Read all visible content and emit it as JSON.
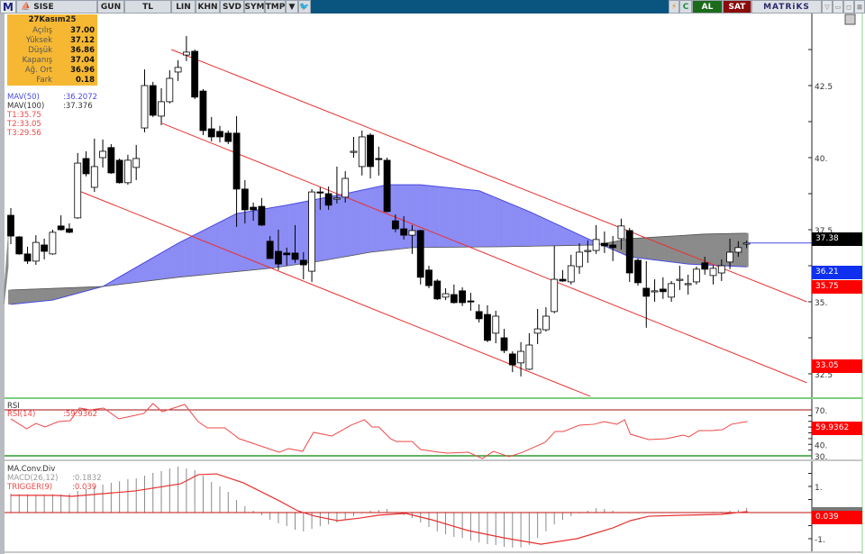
{
  "toolbar": {
    "logo": "M",
    "symbol": "SISE",
    "buttons": [
      "GUN",
      "TL",
      "LIN",
      "KHN",
      "SVD",
      "SYM",
      "TMP"
    ],
    "right": {
      "flash": "⚡",
      "refresh": "C",
      "buy": "AL",
      "sell": "SAT",
      "brand": "MATRiKS"
    }
  },
  "info_box": {
    "date": "27Kasım25",
    "rows": [
      {
        "label": "Açılış",
        "value": "37.00"
      },
      {
        "label": "Yüksek",
        "value": "37.12"
      },
      {
        "label": "Düşük",
        "value": "36.86"
      },
      {
        "label": "Kapanış",
        "value": "37.04"
      },
      {
        "label": "Ağ. Ort",
        "value": "36.96"
      },
      {
        "label": "Fark",
        "value": "0.18"
      }
    ]
  },
  "legend": {
    "mav50": {
      "name": "MAV(50)",
      "value": ":36.2072"
    },
    "mav100": {
      "name": "MAV(100)",
      "value": ":37.376"
    },
    "t1": "T1:35.75",
    "t2": "T2:33.05",
    "t3": "T3:29.56"
  },
  "rsi_legend": {
    "title": "RSI",
    "name": "RSI(14)",
    "value": ":59.9362"
  },
  "macd_legend": {
    "title": "MA.Conv.Div",
    "macd": "MACD(26,12)",
    "macd_value": ":0.1832",
    "trigger": "TRIGGER(9)",
    "trigger_value": ":0.039"
  },
  "price_labels": {
    "last": "37.38",
    "mav50": "36.21",
    "t1": "35.75",
    "t2": "33.05",
    "rsi": "59.9362",
    "trigger": "0.039"
  },
  "colors": {
    "up": "#ffffff",
    "down": "#000000",
    "mav50": "#4a4ae0",
    "mav50_fill": "#8c8cf5",
    "mav100_fill": "#8a8a8a",
    "trend": "#e83030",
    "rsi": "#f04848",
    "trigger": "#e83030",
    "macd": "#8a8a8a",
    "rsi_upper": "#a01010",
    "rsi_lower": "#2e9a2e"
  },
  "chart_data": {
    "type": "candlestick",
    "price_axis": {
      "ticks": [
        42.5,
        40,
        37.5,
        35,
        32.5
      ],
      "tick_labels": [
        "42.5",
        "40.",
        "37.5",
        "35.",
        "32.5"
      ]
    },
    "candles": [
      [
        38.0,
        38.25,
        37.0,
        37.28
      ],
      [
        37.25,
        37.28,
        36.63,
        36.66
      ],
      [
        36.66,
        36.91,
        36.31,
        36.41
      ],
      [
        36.41,
        37.31,
        36.28,
        37.06
      ],
      [
        36.97,
        37.19,
        36.47,
        36.75
      ],
      [
        36.66,
        37.5,
        36.63,
        37.41
      ],
      [
        37.63,
        38.0,
        37.47,
        37.5
      ],
      [
        37.53,
        37.72,
        37.38,
        37.41
      ],
      [
        37.91,
        40.16,
        37.88,
        39.81
      ],
      [
        39.97,
        40.22,
        39.35,
        39.44
      ],
      [
        38.97,
        40.66,
        38.81,
        39.69
      ],
      [
        40.0,
        40.63,
        39.66,
        40.22
      ],
      [
        40.35,
        40.47,
        39.44,
        39.47
      ],
      [
        39.91,
        39.97,
        39.1,
        39.13
      ],
      [
        39.13,
        40.1,
        39.06,
        39.91
      ],
      [
        39.66,
        40.44,
        39.22,
        39.97
      ],
      [
        41.03,
        43.06,
        40.88,
        42.5
      ],
      [
        42.5,
        42.63,
        41.41,
        41.47
      ],
      [
        41.44,
        42.41,
        41.13,
        41.94
      ],
      [
        41.94,
        43.03,
        41.88,
        42.75
      ],
      [
        42.97,
        43.38,
        42.66,
        43.13
      ],
      [
        43.56,
        44.22,
        43.35,
        43.66
      ],
      [
        43.69,
        43.75,
        42.03,
        42.1
      ],
      [
        42.31,
        42.38,
        40.78,
        40.94
      ],
      [
        41.0,
        41.41,
        40.56,
        40.72
      ],
      [
        40.91,
        41.1,
        40.53,
        40.72
      ],
      [
        40.85,
        40.94,
        40.47,
        40.56
      ],
      [
        40.85,
        41.44,
        37.6,
        38.91
      ],
      [
        38.91,
        39.22,
        37.72,
        38.19
      ],
      [
        38.28,
        38.44,
        37.81,
        38.19
      ],
      [
        38.31,
        38.6,
        37.63,
        37.66
      ],
      [
        37.1,
        37.28,
        36.53,
        36.5
      ],
      [
        36.75,
        37.5,
        36.1,
        36.31
      ],
      [
        36.69,
        36.88,
        36.25,
        36.63
      ],
      [
        36.69,
        37.66,
        36.35,
        36.47
      ],
      [
        36.44,
        36.72,
        35.78,
        36.28
      ],
      [
        36.06,
        38.91,
        35.69,
        38.81
      ],
      [
        38.81,
        38.97,
        38.19,
        38.78
      ],
      [
        38.75,
        39.0,
        38.19,
        38.35
      ],
      [
        38.56,
        39.69,
        38.41,
        38.6
      ],
      [
        38.63,
        39.53,
        38.44,
        39.28
      ],
      [
        40.19,
        40.72,
        40.0,
        40.22
      ],
      [
        39.69,
        40.94,
        39.38,
        40.72
      ],
      [
        40.78,
        40.85,
        39.28,
        39.69
      ],
      [
        39.97,
        40.38,
        39.38,
        39.94
      ],
      [
        39.91,
        40.0,
        38.1,
        38.13
      ],
      [
        37.81,
        38.03,
        37.41,
        37.53
      ],
      [
        37.53,
        37.97,
        37.16,
        37.31
      ],
      [
        37.31,
        37.66,
        36.66,
        37.47
      ],
      [
        37.47,
        37.5,
        35.6,
        35.85
      ],
      [
        36.1,
        36.25,
        35.47,
        35.56
      ],
      [
        35.72,
        35.78,
        35.06,
        35.1
      ],
      [
        35.16,
        35.47,
        35.06,
        35.28
      ],
      [
        35.25,
        35.6,
        34.94,
        34.97
      ],
      [
        35.38,
        35.5,
        34.85,
        34.97
      ],
      [
        35.03,
        35.31,
        34.69,
        35.0
      ],
      [
        34.66,
        34.91,
        34.28,
        34.41
      ],
      [
        34.56,
        34.88,
        33.6,
        33.66
      ],
      [
        33.91,
        34.69,
        33.56,
        34.5
      ],
      [
        33.75,
        34.06,
        33.22,
        33.31
      ],
      [
        33.19,
        33.28,
        32.56,
        32.81
      ],
      [
        32.88,
        33.6,
        32.41,
        33.28
      ],
      [
        32.66,
        33.91,
        32.63,
        33.5
      ],
      [
        33.91,
        34.75,
        33.53,
        34.06
      ],
      [
        34.03,
        34.81,
        33.97,
        34.5
      ],
      [
        34.66,
        36.94,
        34.6,
        35.78
      ],
      [
        35.78,
        36.1,
        35.69,
        35.72
      ],
      [
        35.69,
        36.63,
        35.6,
        36.25
      ],
      [
        36.22,
        37.03,
        35.97,
        36.72
      ],
      [
        36.75,
        37.13,
        36.35,
        36.78
      ],
      [
        36.78,
        37.66,
        36.66,
        37.16
      ],
      [
        37.03,
        37.44,
        36.69,
        36.94
      ],
      [
        36.97,
        37.28,
        36.41,
        36.88
      ],
      [
        37.19,
        37.88,
        36.81,
        37.63
      ],
      [
        37.47,
        37.56,
        35.69,
        36.0
      ],
      [
        36.44,
        36.5,
        35.56,
        35.66
      ],
      [
        35.47,
        36.41,
        34.1,
        35.19
      ],
      [
        35.35,
        35.78,
        35.0,
        35.38
      ],
      [
        35.44,
        35.85,
        35.1,
        35.35
      ],
      [
        35.16,
        35.72,
        35.0,
        35.63
      ],
      [
        35.75,
        36.25,
        35.41,
        35.78
      ],
      [
        35.6,
        35.94,
        35.25,
        35.63
      ],
      [
        35.69,
        36.22,
        35.6,
        36.13
      ],
      [
        36.35,
        36.56,
        35.94,
        36.13
      ],
      [
        35.91,
        36.25,
        35.6,
        36.16
      ],
      [
        36.0,
        36.47,
        35.72,
        36.25
      ],
      [
        36.38,
        37.19,
        36.13,
        36.72
      ],
      [
        36.72,
        37.1,
        36.56,
        36.88
      ],
      [
        37.0,
        37.12,
        36.86,
        37.04
      ]
    ],
    "mav50": [
      [
        0,
        34.91
      ],
      [
        5,
        35.06
      ],
      [
        11,
        35.53
      ],
      [
        20,
        37.03
      ],
      [
        27,
        38.06
      ],
      [
        33,
        38.35
      ],
      [
        40,
        38.75
      ],
      [
        45,
        39.06
      ],
      [
        49,
        39.06
      ],
      [
        56,
        38.85
      ],
      [
        62,
        38.13
      ],
      [
        69,
        37.19
      ],
      [
        74,
        36.56
      ],
      [
        81,
        36.31
      ],
      [
        88,
        36.21
      ]
    ],
    "mav100": [
      [
        0,
        35.41
      ],
      [
        11,
        35.53
      ],
      [
        20,
        35.85
      ],
      [
        31,
        36.16
      ],
      [
        37,
        36.41
      ],
      [
        43,
        36.72
      ],
      [
        48,
        36.88
      ],
      [
        59,
        36.91
      ],
      [
        70,
        36.97
      ],
      [
        74,
        37.19
      ],
      [
        83,
        37.35
      ],
      [
        88,
        37.38
      ]
    ],
    "trend_lines": [
      {
        "from": [
          19.2,
          43.75
        ],
        "to": [
          95.2,
          35.0
        ]
      },
      {
        "from": [
          18.1,
          41.19
        ],
        "to": [
          95.2,
          32.19
        ]
      },
      {
        "from": [
          8.2,
          38.84
        ],
        "to": [
          69.3,
          31.72
        ]
      }
    ],
    "last_price": 37.04,
    "rsi": {
      "levels": [
        70,
        30
      ],
      "tick_labels": [
        "70.",
        "40.",
        "30."
      ],
      "points": [
        [
          0,
          62.2
        ],
        [
          1.9,
          53.5
        ],
        [
          3,
          58.2
        ],
        [
          4.1,
          55.1
        ],
        [
          5.7,
          59.8
        ],
        [
          7.1,
          60.6
        ],
        [
          8.2,
          71.6
        ],
        [
          9.5,
          70
        ],
        [
          11.1,
          71.6
        ],
        [
          12.9,
          62.2
        ],
        [
          14.9,
          65.3
        ],
        [
          15.9,
          66.9
        ],
        [
          17,
          75.5
        ],
        [
          18.1,
          68.4
        ],
        [
          20.8,
          74.7
        ],
        [
          22.4,
          59.8
        ],
        [
          23.5,
          54.3
        ],
        [
          25.6,
          54.3
        ],
        [
          27.3,
          44.9
        ],
        [
          28.9,
          41.0
        ],
        [
          32.1,
          33.1
        ],
        [
          33.2,
          36.3
        ],
        [
          34.9,
          33.9
        ],
        [
          36.2,
          50.4
        ],
        [
          38.4,
          47.3
        ],
        [
          40.7,
          56.7
        ],
        [
          42.3,
          61.4
        ],
        [
          43.2,
          55.1
        ],
        [
          44,
          55.1
        ],
        [
          45.4,
          44.9
        ],
        [
          46.1,
          42.5
        ],
        [
          48,
          42.5
        ],
        [
          49,
          35.5
        ],
        [
          51.2,
          33.1
        ],
        [
          52.2,
          32.4
        ],
        [
          54.7,
          33.1
        ],
        [
          56.4,
          27.6
        ],
        [
          57.7,
          33.9
        ],
        [
          59.6,
          29.2
        ],
        [
          61.2,
          33.1
        ],
        [
          63.9,
          41.8
        ],
        [
          65.1,
          51.2
        ],
        [
          66.1,
          51.2
        ],
        [
          68,
          56.7
        ],
        [
          69.8,
          57.5
        ],
        [
          70.9,
          59.8
        ],
        [
          72.5,
          57.5
        ],
        [
          73.4,
          61.4
        ],
        [
          74.1,
          48.8
        ],
        [
          76.3,
          44.1
        ],
        [
          78.4,
          44.9
        ],
        [
          80.4,
          48.0
        ],
        [
          81.1,
          46.5
        ],
        [
          82.3,
          52.0
        ],
        [
          83.8,
          52.0
        ],
        [
          85.1,
          52.7
        ],
        [
          86.2,
          57.5
        ],
        [
          88.1,
          59.94
        ]
      ]
    },
    "macd": {
      "tick_labels": [
        "1.",
        "-1."
      ],
      "histogram": [
        0.72,
        0.7,
        0.7,
        0.68,
        0.68,
        0.7,
        0.7,
        0.72,
        0.83,
        0.9,
        1.0,
        1.07,
        1.14,
        1.2,
        1.28,
        1.31,
        1.41,
        1.52,
        1.59,
        1.69,
        1.76,
        1.69,
        1.62,
        1.41,
        1.17,
        1.0,
        0.79,
        0.48,
        0.24,
        0.07,
        -0.1,
        -0.28,
        -0.41,
        -0.52,
        -0.66,
        -0.72,
        -0.62,
        -0.52,
        -0.45,
        -0.38,
        -0.28,
        -0.14,
        -0.03,
        0.07,
        0.1,
        0.14,
        0.03,
        -0.1,
        -0.21,
        -0.38,
        -0.55,
        -0.72,
        -0.83,
        -0.93,
        -0.97,
        -1.07,
        -1.14,
        -1.21,
        -1.24,
        -1.31,
        -1.34,
        -1.34,
        -1.24,
        -0.97,
        -0.72,
        -0.45,
        -0.28,
        -0.14,
        -0.03,
        0.07,
        0.17,
        0.14,
        0.07,
        0,
        -0.02,
        -0.02,
        -0.02,
        -0.02,
        -0.02,
        -0.02,
        -0.02,
        -0.02,
        0.02,
        0.02,
        0.03,
        0.03,
        0.07,
        0.1,
        0.18
      ],
      "trigger": [
        [
          0,
          0.66
        ],
        [
          5.2,
          0.66
        ],
        [
          7.3,
          0.62
        ],
        [
          14.9,
          0.83
        ],
        [
          20.3,
          1.1
        ],
        [
          22.4,
          1.45
        ],
        [
          24.6,
          1.48
        ],
        [
          27.8,
          1.14
        ],
        [
          32.1,
          0.45
        ],
        [
          34.3,
          0.07
        ],
        [
          36.4,
          -0.14
        ],
        [
          39.1,
          -0.31
        ],
        [
          41.8,
          -0.21
        ],
        [
          44,
          -0.1
        ],
        [
          47.2,
          -0.03
        ],
        [
          50.4,
          -0.28
        ],
        [
          54.7,
          -0.69
        ],
        [
          59,
          -0.97
        ],
        [
          63.4,
          -1.21
        ],
        [
          67.7,
          -1.0
        ],
        [
          72,
          -0.59
        ],
        [
          74.1,
          -0.31
        ],
        [
          76.3,
          -0.14
        ],
        [
          80.6,
          -0.1
        ],
        [
          84.9,
          -0.07
        ],
        [
          88.1,
          0.039
        ]
      ]
    }
  }
}
